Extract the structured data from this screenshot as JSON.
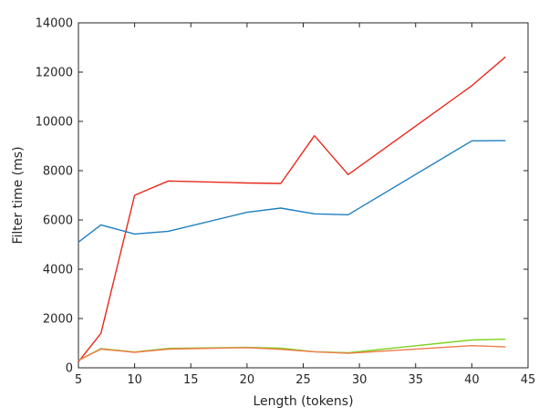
{
  "chart_data": {
    "type": "line",
    "xlabel": "Length (tokens)",
    "ylabel": "Filter time (ms)",
    "xlim": [
      5,
      45
    ],
    "ylim": [
      0,
      14000
    ],
    "xticks": [
      5,
      10,
      15,
      20,
      25,
      30,
      35,
      40,
      45
    ],
    "yticks": [
      0,
      2000,
      4000,
      6000,
      8000,
      10000,
      12000,
      14000
    ],
    "grid": false,
    "x": [
      5,
      7,
      10,
      13,
      20,
      23,
      26,
      29,
      40,
      43
    ],
    "series": [
      {
        "color": "#e8291c",
        "values": [
          250,
          1400,
          7000,
          7580,
          7500,
          7480,
          9420,
          7840,
          11450,
          12620
        ]
      },
      {
        "color": "#1f7fc1",
        "values": [
          5100,
          5800,
          5430,
          5540,
          6310,
          6480,
          6250,
          6210,
          9210,
          9220
        ]
      },
      {
        "color": "#7ed321",
        "values": [
          300,
          780,
          640,
          790,
          830,
          800,
          650,
          610,
          1130,
          1160
        ]
      },
      {
        "color": "#f07b4a",
        "values": [
          300,
          760,
          630,
          760,
          820,
          750,
          650,
          590,
          900,
          850
        ]
      }
    ]
  }
}
